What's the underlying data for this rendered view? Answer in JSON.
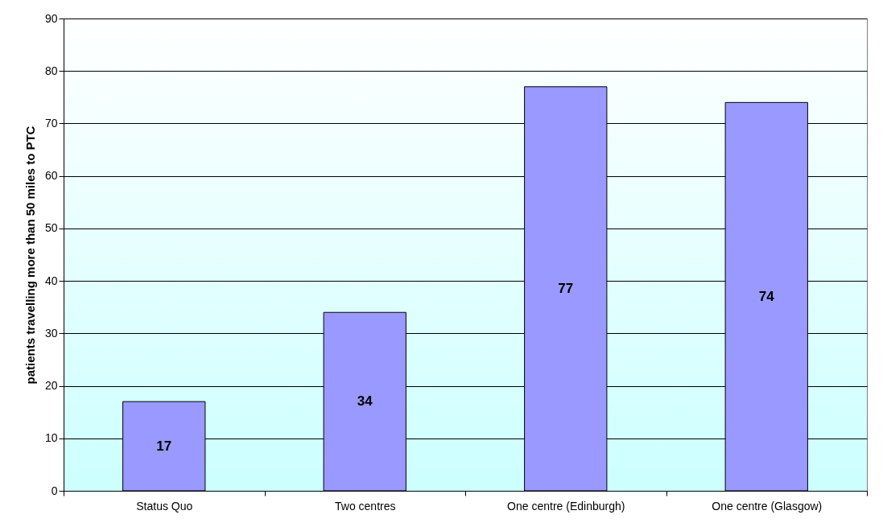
{
  "chart_data": {
    "type": "bar",
    "ylabel": "patients travelling more than 50 miles to PTC",
    "categories": [
      "Status Quo",
      "Two centres",
      "One centre (Edinburgh)",
      "One centre (Glasgow)"
    ],
    "values": [
      17,
      34,
      77,
      74
    ],
    "color": "#9999ff",
    "ylim": [
      0,
      90
    ],
    "yticks": [
      0,
      10,
      20,
      30,
      40,
      50,
      60,
      70,
      80,
      90
    ],
    "grid": "y",
    "data_labels": true
  }
}
